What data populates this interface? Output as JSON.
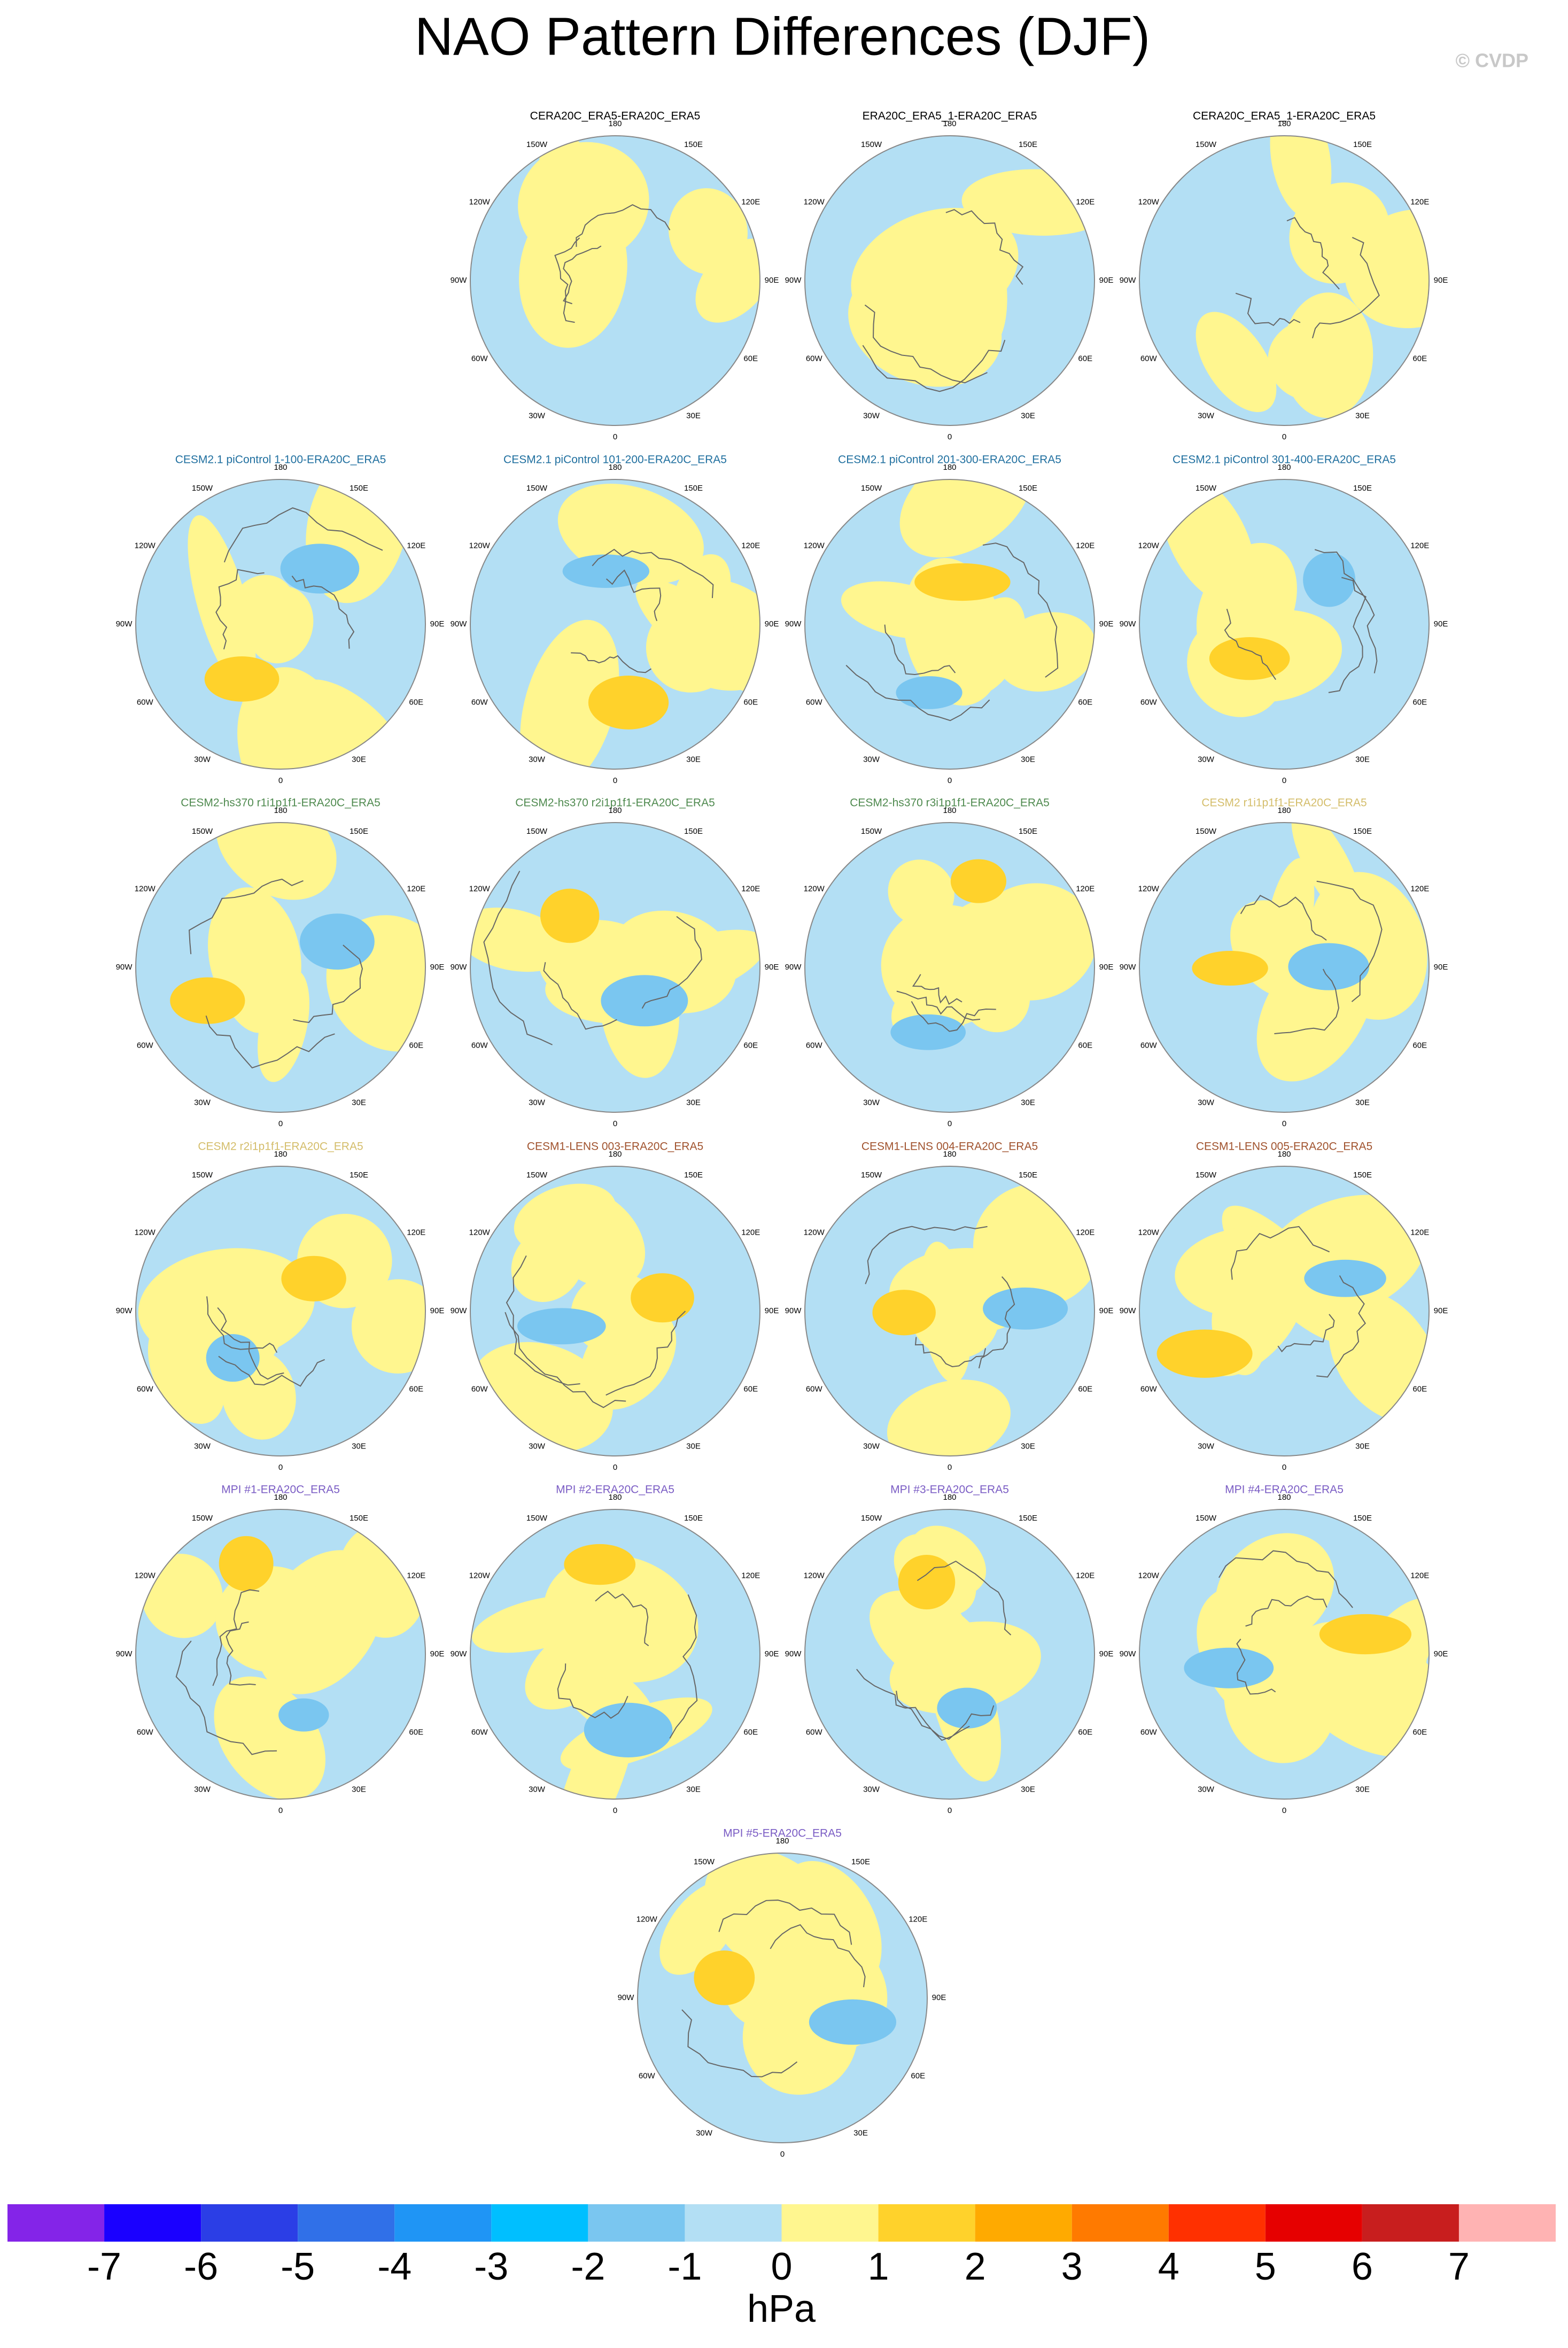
{
  "title": "NAO Pattern Differences (DJF)",
  "credit": "© CVDP",
  "lon_labels": [
    "180",
    "150E",
    "120E",
    "90E",
    "60E",
    "30E",
    "0",
    "30W",
    "60W",
    "90W",
    "120W",
    "150W"
  ],
  "panels": [
    {
      "title": "CERA20C_ERA5-ERA20C_ERA5",
      "color": "#000000"
    },
    {
      "title": "ERA20C_ERA5_1-ERA20C_ERA5",
      "color": "#000000"
    },
    {
      "title": "CERA20C_ERA5_1-ERA20C_ERA5",
      "color": "#000000"
    },
    {
      "title": "CESM2.1 piControl 1-100-ERA20C_ERA5",
      "color": "#1f6f9f"
    },
    {
      "title": "CESM2.1 piControl 101-200-ERA20C_ERA5",
      "color": "#1f6f9f"
    },
    {
      "title": "CESM2.1 piControl 201-300-ERA20C_ERA5",
      "color": "#1f6f9f"
    },
    {
      "title": "CESM2.1 piControl 301-400-ERA20C_ERA5",
      "color": "#1f6f9f"
    },
    {
      "title": "CESM2-hs370 r1i1p1f1-ERA20C_ERA5",
      "color": "#4f8a4f"
    },
    {
      "title": "CESM2-hs370 r2i1p1f1-ERA20C_ERA5",
      "color": "#4f8a4f"
    },
    {
      "title": "CESM2-hs370 r3i1p1f1-ERA20C_ERA5",
      "color": "#4f8a4f"
    },
    {
      "title": "CESM2 r1i1p1f1-ERA20C_ERA5",
      "color": "#d4bd6a"
    },
    {
      "title": "CESM2 r2i1p1f1-ERA20C_ERA5",
      "color": "#d4bd6a"
    },
    {
      "title": "CESM1-LENS 003-ERA20C_ERA5",
      "color": "#a0522d"
    },
    {
      "title": "CESM1-LENS 004-ERA20C_ERA5",
      "color": "#a0522d"
    },
    {
      "title": "CESM1-LENS 005-ERA20C_ERA5",
      "color": "#a0522d"
    },
    {
      "title": "MPI #1-ERA20C_ERA5",
      "color": "#7a5cc4"
    },
    {
      "title": "MPI #2-ERA20C_ERA5",
      "color": "#7a5cc4"
    },
    {
      "title": "MPI #3-ERA20C_ERA5",
      "color": "#7a5cc4"
    },
    {
      "title": "MPI #4-ERA20C_ERA5",
      "color": "#7a5cc4"
    },
    {
      "title": "MPI #5-ERA20C_ERA5",
      "color": "#7a5cc4"
    }
  ],
  "colorbar": {
    "colors": [
      "#8424e8",
      "#1a00ff",
      "#2b3ee6",
      "#3070e8",
      "#1f95f5",
      "#00bfff",
      "#7ac6f0",
      "#b3dff4",
      "#fff68f",
      "#ffd22b",
      "#ffaa00",
      "#ff7a00",
      "#ff3000",
      "#e60000",
      "#c81e1e",
      "#ffb3b3"
    ],
    "ticks": [
      -7,
      -6,
      -5,
      -4,
      -3,
      -2,
      -1,
      0,
      1,
      2,
      3,
      4,
      5,
      6,
      7
    ],
    "units": "hPa"
  }
}
